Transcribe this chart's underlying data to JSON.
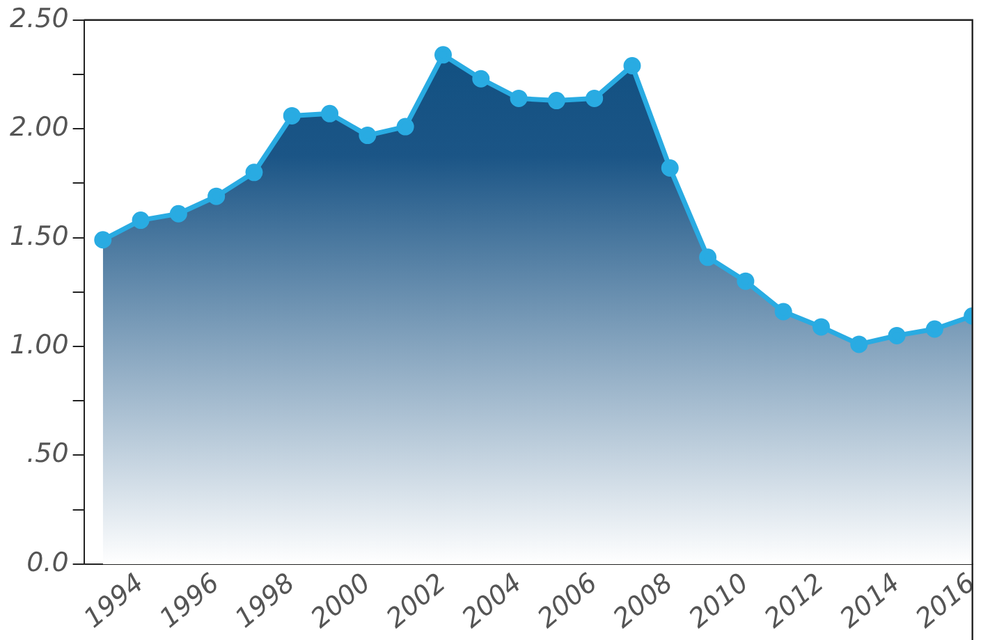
{
  "chart_data": {
    "type": "area",
    "x": [
      1993,
      1994,
      1995,
      1996,
      1997,
      1998,
      1999,
      2000,
      2001,
      2002,
      2003,
      2004,
      2005,
      2006,
      2007,
      2008,
      2009,
      2010,
      2011,
      2012,
      2013,
      2014,
      2015,
      2016
    ],
    "series": [
      {
        "color": "#29abe2",
        "values": [
          1.49,
          1.58,
          1.61,
          1.69,
          1.8,
          2.06,
          2.07,
          1.97,
          2.01,
          2.34,
          2.23,
          2.14,
          2.13,
          2.14,
          2.29,
          1.82,
          1.41,
          1.3,
          1.16,
          1.09,
          1.01,
          1.05,
          1.08,
          1.14
        ]
      }
    ],
    "xlim": [
      1992.5,
      2016
    ],
    "xticks": [
      1994,
      1996,
      1998,
      2000,
      2002,
      2004,
      2006,
      2008,
      2010,
      2012,
      2014,
      2016
    ],
    "ylim": [
      0,
      2.5
    ],
    "yticks": [
      {
        "value": 0,
        "label": "0.0"
      },
      {
        "value": 0.25,
        "label": null
      },
      {
        "value": 0.5,
        "label": ".50"
      },
      {
        "value": 0.75,
        "label": null
      },
      {
        "value": 1,
        "label": "1.00"
      },
      {
        "value": 1.25,
        "label": null
      },
      {
        "value": 1.5,
        "label": "1.50"
      },
      {
        "value": 1.75,
        "label": null
      },
      {
        "value": 2,
        "label": "2.00"
      },
      {
        "value": 2.25,
        "label": null
      },
      {
        "value": 2.5,
        "label": "2.50"
      }
    ],
    "grid": false,
    "legend": false,
    "marker": "circle",
    "line_style": "solid"
  }
}
